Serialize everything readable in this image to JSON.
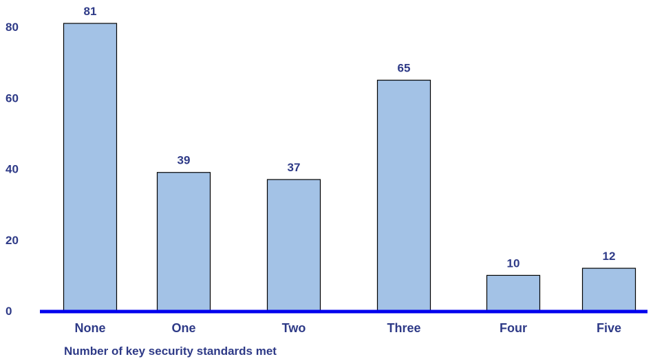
{
  "chart_data": {
    "type": "bar",
    "title": "",
    "xlabel": "Number of key security standards met",
    "ylabel": "",
    "categories": [
      "None",
      "One",
      "Two",
      "Three",
      "Four",
      "Five"
    ],
    "values": [
      81,
      39,
      37,
      65,
      10,
      12
    ],
    "ylim": [
      0,
      88
    ],
    "yticks": [
      0,
      20,
      40,
      60,
      80
    ],
    "grid": false,
    "legend": "none",
    "bar_color": "#a3c2e6",
    "bar_edge_color": "#000000",
    "axis_color": "#0000ee",
    "text_color": "#2e3a87"
  }
}
